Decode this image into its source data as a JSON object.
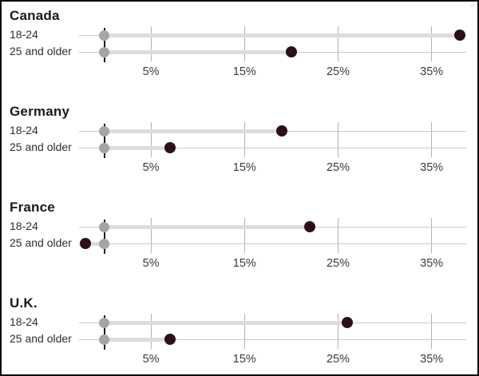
{
  "chart_data": {
    "type": "dumbbell",
    "title": "",
    "unit": "percent",
    "x_ticks": [
      5,
      15,
      25,
      35
    ],
    "x_tick_labels": [
      "5%",
      "15%",
      "25%",
      "35%"
    ],
    "xlim": [
      -2.7,
      38.8
    ],
    "grid": true,
    "legend_position": "none",
    "baseline_value": 0,
    "groups": [
      {
        "title": "Canada",
        "rows": [
          {
            "label": "18-24",
            "baseline": 0,
            "value": 38
          },
          {
            "label": "25 and older",
            "baseline": 0,
            "value": 20
          }
        ]
      },
      {
        "title": "Germany",
        "rows": [
          {
            "label": "18-24",
            "baseline": 0,
            "value": 19
          },
          {
            "label": "25 and older",
            "baseline": 0,
            "value": 7
          }
        ]
      },
      {
        "title": "France",
        "rows": [
          {
            "label": "18-24",
            "baseline": 0,
            "value": 22
          },
          {
            "label": "25 and older",
            "baseline": 0,
            "value": -2
          }
        ]
      },
      {
        "title": "U.K.",
        "rows": [
          {
            "label": "18-24",
            "baseline": 0,
            "value": 26
          },
          {
            "label": "25 and older",
            "baseline": 0,
            "value": 7
          }
        ]
      }
    ],
    "colors": {
      "value_dot": "#2b1117",
      "baseline_dot": "#a5a5a5",
      "bar": "#dcdcdc",
      "row_line": "#c9c9c9",
      "grid_line": "#b2b2b2",
      "baseline_line": "#1a1a1a",
      "title_text": "#1a1a1a",
      "label_text": "#2e2e2e",
      "tick_text": "#3a3a3a",
      "border": "#0a0a0a"
    }
  },
  "artifacts": {
    "corner_mark": "×"
  }
}
